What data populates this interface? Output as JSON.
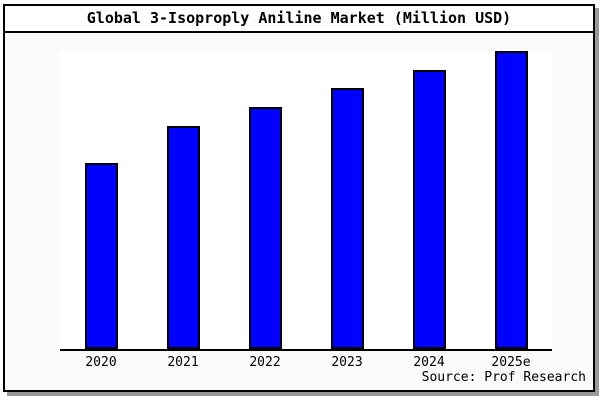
{
  "title": "Global 3-Isoproply Aniline Market (Million USD)",
  "source_note": "Source: Prof Research",
  "colors": {
    "bar_fill": "#0000ff",
    "bar_border": "#000000",
    "frame_border": "#000000",
    "chart_background": "#fafafa",
    "plot_background": "#ffffff",
    "title_background": "#ffffff",
    "shadow": "#999999",
    "text": "#000000"
  },
  "chart_data": {
    "type": "bar",
    "title": "Global 3-Isoproply Aniline Market (Million USD)",
    "categories": [
      "2020",
      "2021",
      "2022",
      "2023",
      "2024",
      "2025e"
    ],
    "values": [
      62.4,
      74.7,
      81.2,
      87.5,
      93.6,
      100
    ],
    "values_note": "No y-axis, ticks or gridlines are shown; values are estimated bar heights as a percentage of the tallest (2025e) bar",
    "xlabel": "",
    "ylabel": "",
    "legend": "none",
    "grid": false,
    "bar_color": "#0000ff",
    "source": "Source: Prof Research"
  }
}
